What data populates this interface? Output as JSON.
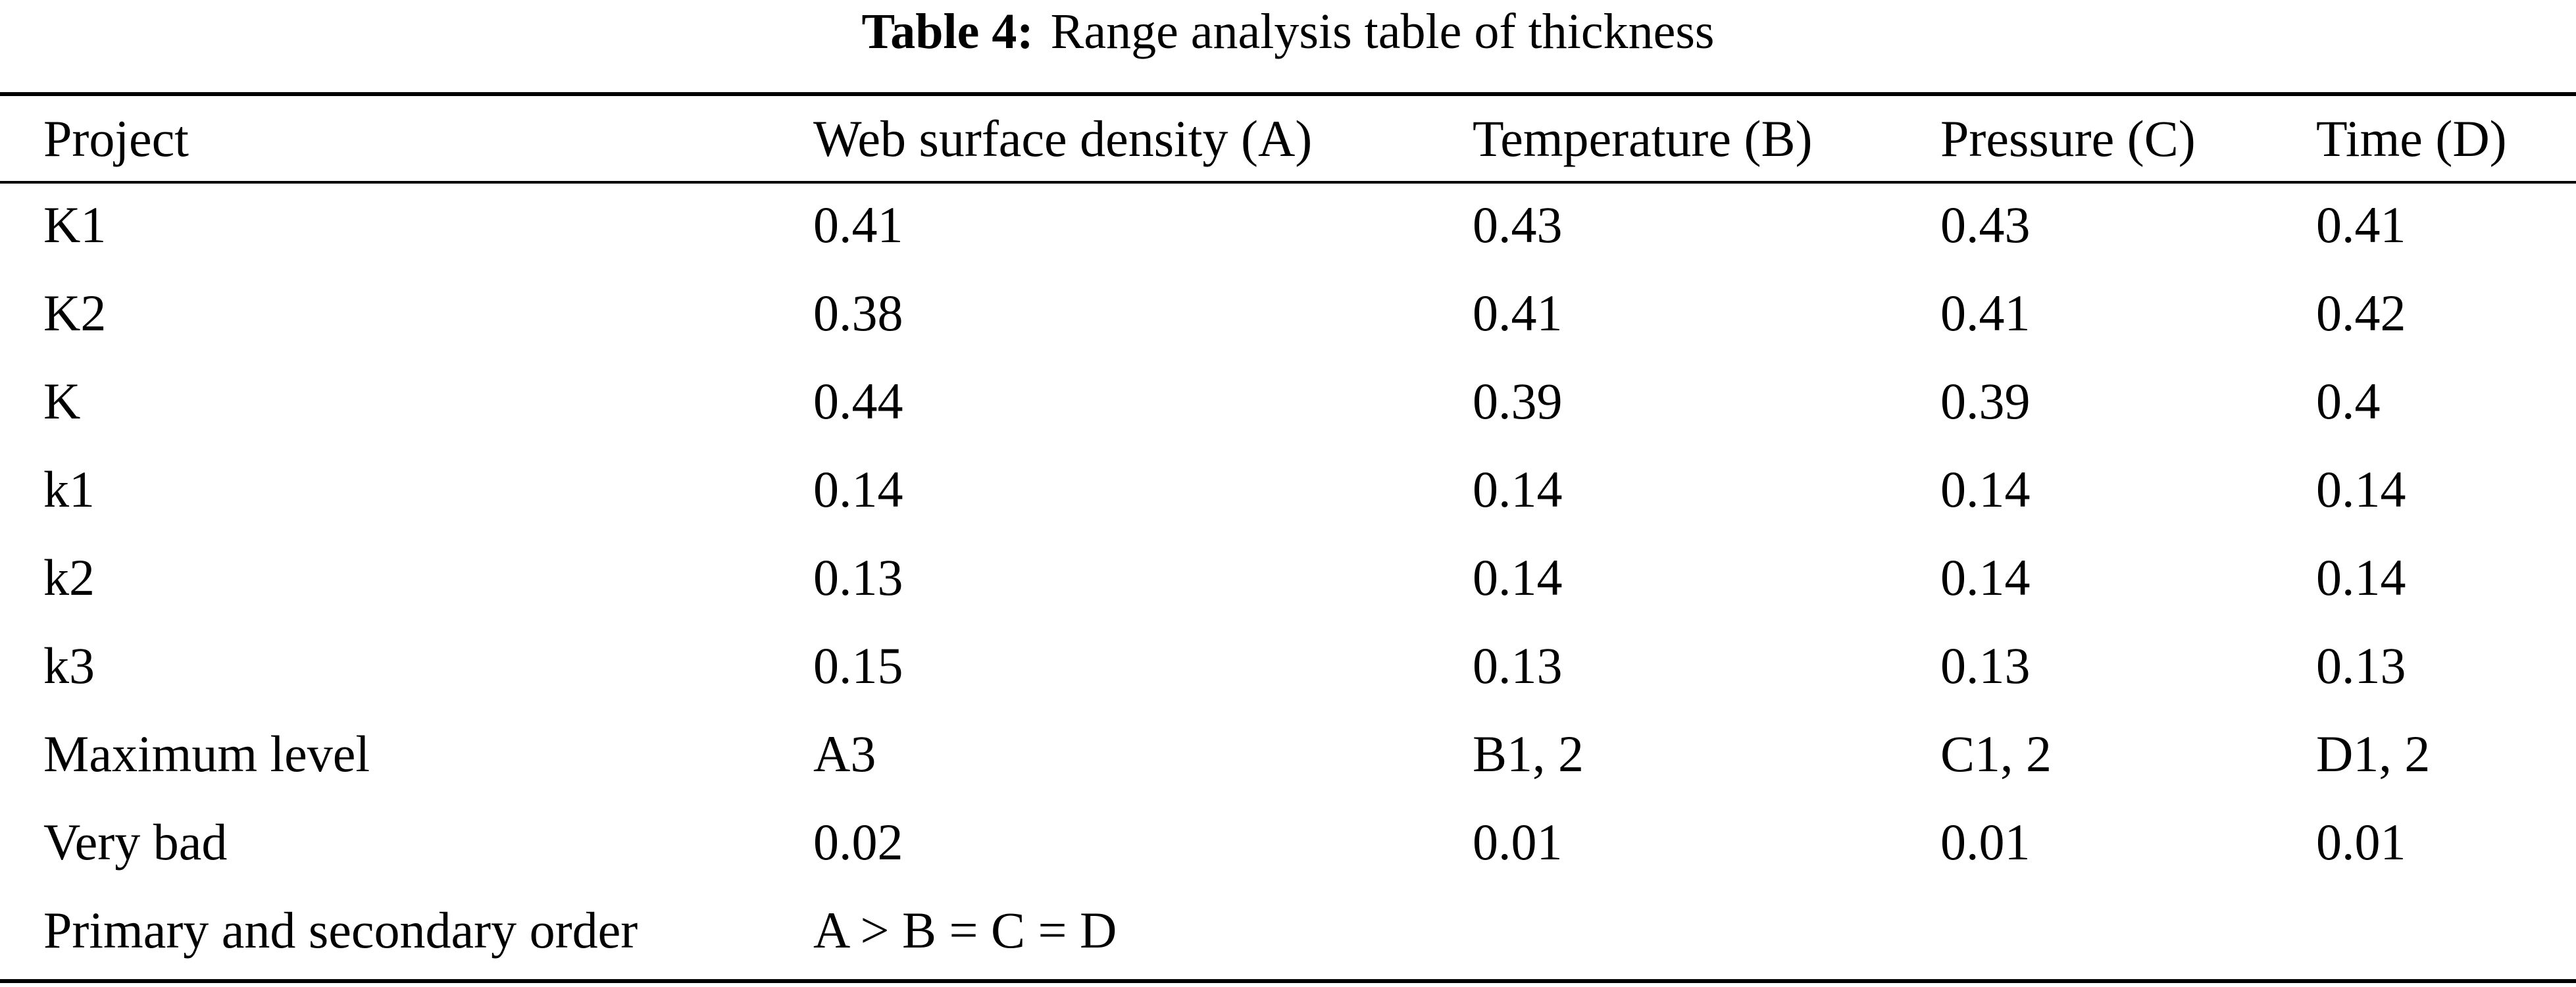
{
  "caption": {
    "label": "Table 4:",
    "title": "Range analysis table of thickness"
  },
  "table": {
    "columns": [
      "Project",
      "Web surface density (A)",
      "Temperature (B)",
      "Pressure (C)",
      "Time (D)"
    ],
    "rows": [
      [
        "K1",
        "0.41",
        "0.43",
        "0.43",
        "0.41"
      ],
      [
        "K2",
        "0.38",
        "0.41",
        "0.41",
        "0.42"
      ],
      [
        "K",
        "0.44",
        "0.39",
        "0.39",
        "0.4"
      ],
      [
        "k1",
        "0.14",
        "0.14",
        "0.14",
        "0.14"
      ],
      [
        "k2",
        "0.13",
        "0.14",
        "0.14",
        "0.14"
      ],
      [
        "k3",
        "0.15",
        "0.13",
        "0.13",
        "0.13"
      ],
      [
        "Maximum level",
        "A3",
        "B1, 2",
        "C1, 2",
        "D1, 2"
      ],
      [
        "Very bad",
        "0.02",
        "0.01",
        "0.01",
        "0.01"
      ],
      [
        "Primary and secondary order",
        "A > B = C = D",
        "",
        "",
        ""
      ]
    ]
  }
}
